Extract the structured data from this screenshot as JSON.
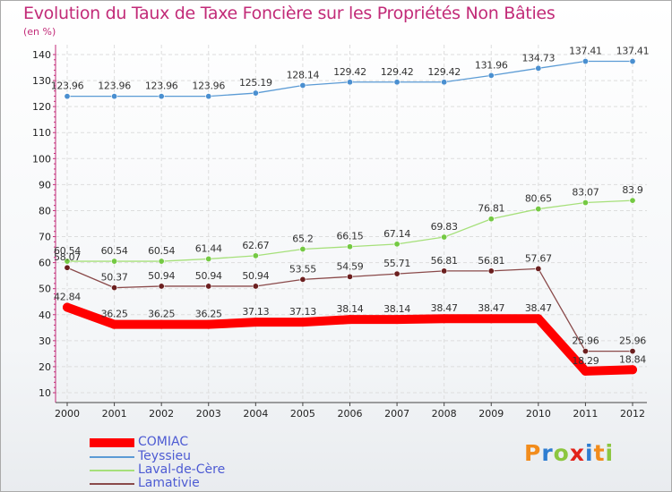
{
  "title": "Evolution du Taux de Taxe Foncière sur les Propriétés Non Bâties",
  "unit_label": "(en %)",
  "logo": {
    "text": "Proxiti",
    "letters": [
      "P",
      "r",
      "o",
      "x",
      "i",
      "t",
      "i"
    ],
    "colors": [
      "#f28c1c",
      "#2e7dd1",
      "#8cc63f",
      "#e2231a",
      "#2e7dd1",
      "#f28c1c",
      "#8cc63f"
    ]
  },
  "chart_data": {
    "type": "line",
    "title": "Evolution du Taux de Taxe Foncière sur les Propriétés Non Bâties",
    "ylabel": "(en %)",
    "xlabel": "",
    "ylim": [
      10,
      140
    ],
    "yticks": [
      10,
      20,
      30,
      40,
      50,
      60,
      70,
      80,
      90,
      100,
      110,
      120,
      130,
      140
    ],
    "categories": [
      "2000",
      "2001",
      "2002",
      "2003",
      "2004",
      "2005",
      "2006",
      "2007",
      "2008",
      "2009",
      "2010",
      "2011",
      "2012"
    ],
    "series": [
      {
        "name": "Teyssieu",
        "color": "#5b9bd5",
        "point_color": "#4a8fd0",
        "values": [
          123.96,
          123.96,
          123.96,
          123.96,
          125.19,
          128.14,
          129.42,
          129.42,
          129.42,
          131.96,
          134.73,
          137.41,
          137.41
        ],
        "labels": [
          "123.96",
          "123.96",
          "123.96",
          "123.96",
          "125.19",
          "128.14",
          "129.42",
          "129.42",
          "129.42",
          "131.96",
          "134.73",
          "137.41",
          "137.41"
        ]
      },
      {
        "name": "Laval-de-Cère",
        "color": "#a6e07a",
        "point_color": "#74c943",
        "values": [
          60.54,
          60.54,
          60.54,
          61.44,
          62.67,
          65.2,
          66.15,
          67.14,
          69.83,
          76.81,
          80.65,
          83.07,
          83.9
        ],
        "labels": [
          "60.54",
          "60.54",
          "60.54",
          "61.44",
          "62.67",
          "65.2",
          "66.15",
          "67.14",
          "69.83",
          "76.81",
          "80.65",
          "83.07",
          "83.9"
        ]
      },
      {
        "name": "Lamativie",
        "color": "#8a4a4a",
        "point_color": "#6b1f1f",
        "values": [
          58.07,
          50.37,
          50.94,
          50.94,
          50.94,
          53.55,
          54.59,
          55.71,
          56.81,
          56.81,
          57.67,
          25.96,
          25.96
        ],
        "labels": [
          "58.07",
          "50.37",
          "50.94",
          "50.94",
          "50.94",
          "53.55",
          "54.59",
          "55.71",
          "56.81",
          "56.81",
          "57.67",
          "25.96",
          "25.96"
        ]
      },
      {
        "name": "COMIAC",
        "color": "#ff0000",
        "point_color": "#ff0000",
        "values": [
          42.84,
          36.25,
          36.25,
          36.25,
          37.13,
          37.13,
          38.14,
          38.14,
          38.47,
          38.47,
          38.47,
          18.29,
          18.84
        ],
        "labels": [
          "42.84",
          "36.25",
          "36.25",
          "36.25",
          "37.13",
          "37.13",
          "38.14",
          "38.14",
          "38.47",
          "38.47",
          "38.47",
          "18.29",
          "18.84"
        ]
      }
    ],
    "legend": [
      "COMIAC",
      "Teyssieu",
      "Laval-de-Cère",
      "Lamativie"
    ]
  }
}
